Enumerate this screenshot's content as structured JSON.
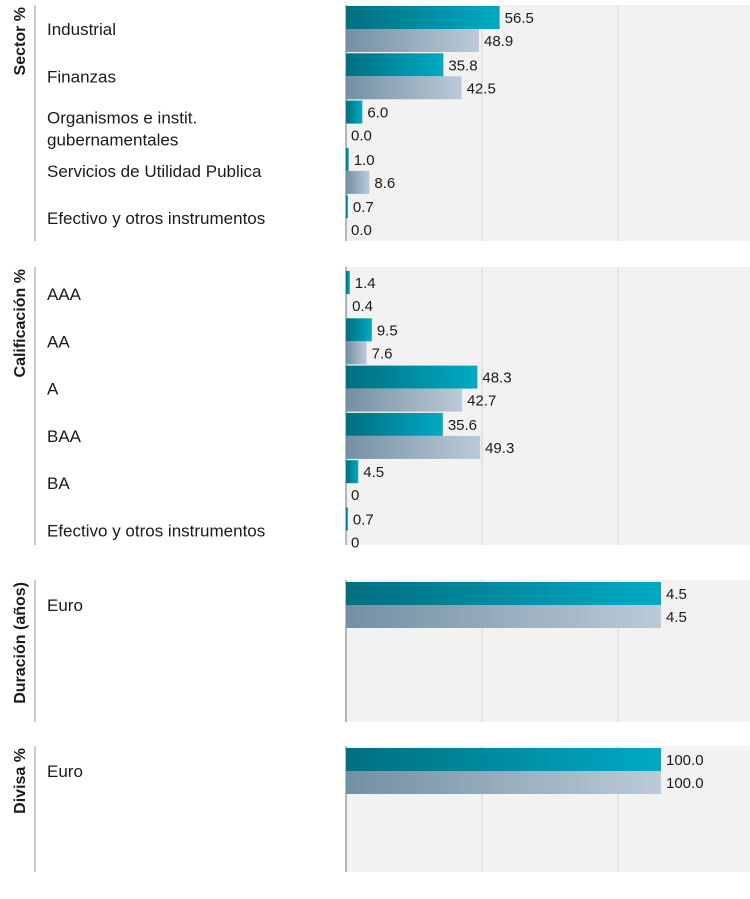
{
  "colors": {
    "portfolio_dark": "#006f80",
    "portfolio_light": "#00aac4",
    "index_dark": "#7390a3",
    "index_light": "#bccad8",
    "panel_bg": "#f2f2f2",
    "gridline": "#d4d4d4",
    "text": "#1a1a1a"
  },
  "chart_data": [
    {
      "type": "bar",
      "orientation": "horizontal",
      "section_label": "Sector %",
      "categories": [
        "Industrial",
        "Finanzas",
        "Organismos e instit. gubernamentales",
        "Servicios de Utilidad Publica",
        "Efectivo y otros instrumentos"
      ],
      "category_lines": [
        [
          "Industrial"
        ],
        [
          "Finanzas"
        ],
        [
          "Organismos e instit.",
          "gubernamentales"
        ],
        [
          "Servicios de Utilidad Publica"
        ],
        [
          "Efectivo y otros instrumentos"
        ]
      ],
      "series": [
        {
          "values": [
            56.5,
            35.8,
            6.0,
            1.0,
            0.7
          ],
          "labels": [
            "56.5",
            "35.8",
            "6.0",
            "1.0",
            "0.7"
          ]
        },
        {
          "values": [
            48.9,
            42.5,
            0.0,
            8.6,
            0.0
          ],
          "labels": [
            "48.9",
            "42.5",
            "0.0",
            "8.6",
            "0.0"
          ]
        }
      ],
      "xlim": [
        0,
        100
      ]
    },
    {
      "type": "bar",
      "orientation": "horizontal",
      "section_label": "Calificación %",
      "categories": [
        "AAA",
        "AA",
        "A",
        "BAA",
        "BA",
        "Efectivo y otros instrumentos"
      ],
      "category_lines": [
        [
          "AAA"
        ],
        [
          "AA"
        ],
        [
          "A"
        ],
        [
          "BAA"
        ],
        [
          "BA"
        ],
        [
          "Efectivo y otros instrumentos"
        ]
      ],
      "series": [
        {
          "values": [
            1.4,
            9.5,
            48.3,
            35.6,
            4.5,
            0.7
          ],
          "labels": [
            "1.4",
            "9.5",
            "48.3",
            "35.6",
            "4.5",
            "0.7"
          ]
        },
        {
          "values": [
            0.4,
            7.6,
            42.7,
            49.3,
            0,
            0
          ],
          "labels": [
            "0.4",
            "7.6",
            "42.7",
            "49.3",
            "0",
            "0"
          ]
        }
      ],
      "xlim": [
        0,
        100
      ]
    },
    {
      "type": "bar",
      "orientation": "horizontal",
      "section_label": "Duración (años)",
      "categories": [
        "Euro"
      ],
      "category_lines": [
        [
          "Euro"
        ]
      ],
      "series": [
        {
          "values": [
            4.5
          ],
          "labels": [
            "4.5"
          ]
        },
        {
          "values": [
            4.5
          ],
          "labels": [
            "4.5"
          ]
        }
      ],
      "xlim": [
        0,
        8
      ]
    },
    {
      "type": "bar",
      "orientation": "horizontal",
      "section_label": "Divisa %",
      "categories": [
        "Euro"
      ],
      "category_lines": [
        [
          "Euro"
        ]
      ],
      "series": [
        {
          "values": [
            100.0
          ],
          "labels": [
            "100.0"
          ]
        },
        {
          "values": [
            100.0
          ],
          "labels": [
            "100.0"
          ]
        }
      ],
      "xlim": [
        0,
        168
      ]
    }
  ]
}
